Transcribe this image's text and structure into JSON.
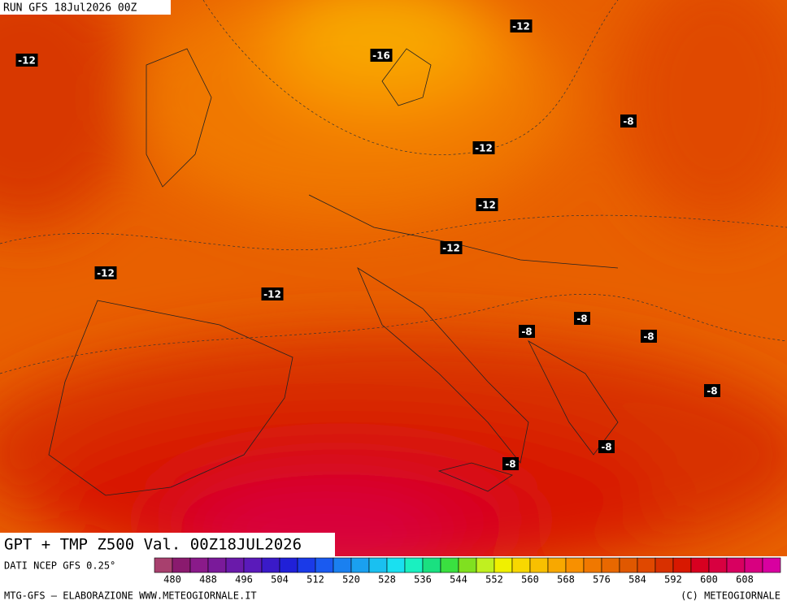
{
  "header": {
    "run": "RUN GFS 18Jul2026 00Z"
  },
  "map_labels": [
    "-12",
    "-12",
    "-16",
    "-8",
    "-12",
    "-12",
    "-12",
    "-12",
    "-12",
    "-8",
    "-8",
    "-8",
    "-8",
    "-8",
    "-8"
  ],
  "title": "GPT + TMP Z500 Val. 00Z18JUL2026",
  "footer": {
    "source": "DATI NCEP GFS 0.25°",
    "credit": "MTG-GFS — ELABORAZIONE WWW.METEOGIORNALE.IT",
    "copyright": "(C) METEOGIORNALE"
  },
  "colorbar": {
    "labels": [
      480,
      488,
      496,
      504,
      512,
      520,
      528,
      536,
      544,
      552,
      560,
      568,
      576,
      584,
      592,
      600,
      608
    ],
    "colors": [
      "#a8406e",
      "#8a1a6e",
      "#8a1a8a",
      "#7a1a9a",
      "#6a1aaa",
      "#5a1aba",
      "#3a1ac8",
      "#2020d8",
      "#1a3ae8",
      "#1a5af0",
      "#1a80f0",
      "#1aa0f0",
      "#1ac0f0",
      "#1ae0f0",
      "#1af0c0",
      "#1ae080",
      "#3ae040",
      "#80e020",
      "#c0f020",
      "#f0f000",
      "#f8d800",
      "#f8c000",
      "#f8a800",
      "#f89000",
      "#f07800",
      "#e86800",
      "#e05800",
      "#e04800",
      "#d83000",
      "#d81800",
      "#d80020",
      "#d80040",
      "#d80060",
      "#d80080",
      "#d800a0"
    ]
  }
}
